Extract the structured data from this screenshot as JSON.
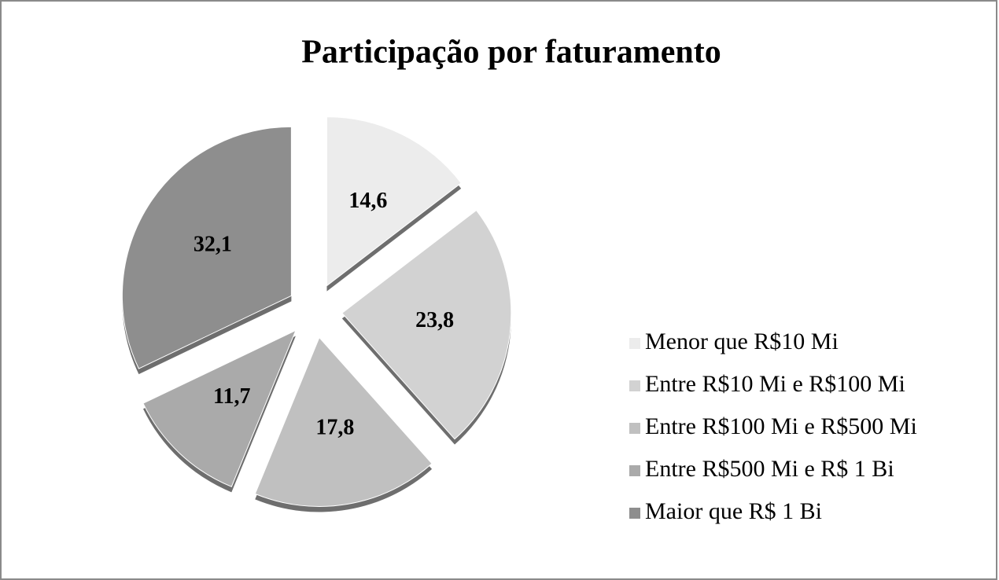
{
  "chart_data": {
    "type": "pie",
    "title": "Participação por faturamento",
    "categories": [
      "Menor que R$10 Mi",
      "Entre R$10 Mi e R$100 Mi",
      "Entre R$100 Mi e R$500 Mi",
      "Entre R$500 Mi e R$ 1 Bi",
      "Maior que R$ 1 Bi"
    ],
    "values": [
      14.6,
      23.8,
      17.8,
      11.7,
      32.1
    ],
    "value_labels": [
      "14,6",
      "23,8",
      "17,8",
      "11,7",
      "32,1"
    ],
    "colors": [
      "#ececec",
      "#d2d2d2",
      "#c0c0c0",
      "#aaaaaa",
      "#8e8e8e"
    ],
    "legend": "right"
  }
}
